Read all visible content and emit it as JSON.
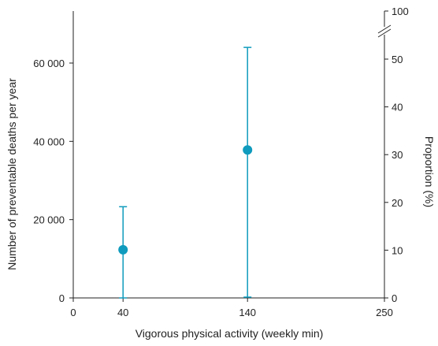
{
  "chart_data": {
    "type": "scatter",
    "title": "",
    "xlabel": "Vigorous physical activity (weekly min)",
    "ylabel": "Number of preventable deaths per year",
    "y2label": "Proportion (%)",
    "xlim": [
      0,
      250
    ],
    "ylim": [
      0,
      72000
    ],
    "y2lim": [
      0,
      58
    ],
    "x_ticks": [
      0,
      40,
      140,
      250
    ],
    "y_ticks": [
      0,
      20000,
      40000,
      60000
    ],
    "y_tick_labels": [
      "0",
      "20 000",
      "40 000",
      "60 000"
    ],
    "y2_ticks": [
      0,
      10,
      20,
      30,
      40,
      50
    ],
    "y2_top_label": "100",
    "y2_broken_axis": true,
    "grid": false,
    "colors": {
      "marker": "#0f9bbd",
      "axis": "#222222"
    },
    "points": [
      {
        "x": 40,
        "y": 12300,
        "y_low": 0,
        "y_high": 23300
      },
      {
        "x": 140,
        "y": 37800,
        "y_low": 200,
        "y_high": 64000
      }
    ]
  }
}
